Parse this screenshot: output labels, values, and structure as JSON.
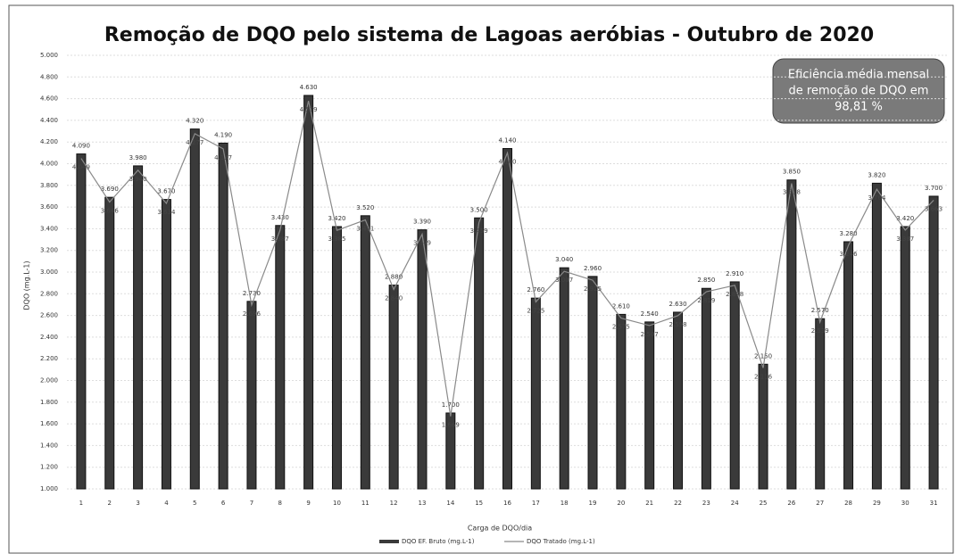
{
  "chart_data": {
    "type": "bar",
    "title": "Remoção de DQO pelo sistema de Lagoas aeróbias - Outubro de 2020",
    "xlabel": "Carga de DQO/dia",
    "ylabel": "DQO (mg.L-1)",
    "annotation": [
      "Eficiência média mensal",
      "de remoção de DQO em",
      "98,81 %"
    ],
    "categories": [
      "1",
      "2",
      "3",
      "4",
      "5",
      "6",
      "7",
      "8",
      "9",
      "10",
      "11",
      "12",
      "13",
      "14",
      "15",
      "16",
      "17",
      "18",
      "19",
      "20",
      "21",
      "22",
      "23",
      "24",
      "25",
      "26",
      "27",
      "28",
      "29",
      "30",
      "31"
    ],
    "series": [
      {
        "name": "DQO EF. Bruto (mg.L-1)",
        "color": "#3a3a3a",
        "kind": "bar",
        "values": [
          4090,
          3690,
          3980,
          3670,
          4320,
          4190,
          2730,
          3430,
          4630,
          3420,
          3520,
          2880,
          3390,
          1700,
          3500,
          4140,
          2760,
          3040,
          2960,
          2610,
          2540,
          2630,
          2850,
          2910,
          2150,
          3850,
          2570,
          3280,
          3820,
          3420,
          3700
        ],
        "value_labels": [
          "4.090",
          "3.690",
          "3.980",
          "3.670",
          "4.320",
          "4.190",
          "2.730",
          "3.430",
          "4.630",
          "3.420",
          "3.520",
          "2.880",
          "3.390",
          "1.700",
          "3.500",
          "4.140",
          "2.760",
          "3.040",
          "2.960",
          "2.610",
          "2.540",
          "2.630",
          "2.850",
          "2.910",
          "2.150",
          "3.850",
          "2.570",
          "3.280",
          "3.820",
          "3.420",
          "3.700"
        ]
      },
      {
        "name": "DQO Tratado (mg.L-1)",
        "color": "#8a8a8a",
        "kind": "line",
        "values": [
          4049,
          3646,
          3940,
          3634,
          4277,
          4137,
          2696,
          3387,
          4579,
          3385,
          3481,
          2840,
          3349,
          1669,
          3459,
          4100,
          2725,
          3007,
          2925,
          2575,
          2507,
          2598,
          2819,
          2878,
          2116,
          3818,
          2539,
          3246,
          3764,
          3387,
          3663
        ],
        "value_labels": [
          "4.049",
          "3.646",
          "3.940",
          "3.634",
          "4.277",
          "4.137",
          "2.696",
          "3.387",
          "4.579",
          "3.385",
          "3.481",
          "2.840",
          "3.349",
          "1.669",
          "3.459",
          "4.100",
          "2.725",
          "3.007",
          "2.925",
          "2.575",
          "2.507",
          "2.598",
          "2.819",
          "2.878",
          "2.116",
          "3.818",
          "2.539",
          "3.246",
          "3.764",
          "3.387",
          "3.663"
        ]
      }
    ],
    "ylim": [
      1000,
      5000
    ],
    "yticks": [
      {
        "value": 1000,
        "label": "1.000"
      },
      {
        "value": 1200,
        "label": "1.200"
      },
      {
        "value": 1400,
        "label": "1.400"
      },
      {
        "value": 1600,
        "label": "1.600"
      },
      {
        "value": 1800,
        "label": "1.800"
      },
      {
        "value": 2000,
        "label": "2.000"
      },
      {
        "value": 2200,
        "label": "2.200"
      },
      {
        "value": 2400,
        "label": "2.400"
      },
      {
        "value": 2600,
        "label": "2.600"
      },
      {
        "value": 2800,
        "label": "2.800"
      },
      {
        "value": 3000,
        "label": "3.000"
      },
      {
        "value": 3200,
        "label": "3.200"
      },
      {
        "value": 3400,
        "label": "3.400"
      },
      {
        "value": 3600,
        "label": "3.600"
      },
      {
        "value": 3800,
        "label": "3.800"
      },
      {
        "value": 4000,
        "label": "4.000"
      },
      {
        "value": 4200,
        "label": "4.200"
      },
      {
        "value": 4400,
        "label": "4.400"
      },
      {
        "value": 4600,
        "label": "4.600"
      },
      {
        "value": 4800,
        "label": "4.800"
      },
      {
        "value": 5000,
        "label": "5.000"
      }
    ],
    "grid": true
  }
}
